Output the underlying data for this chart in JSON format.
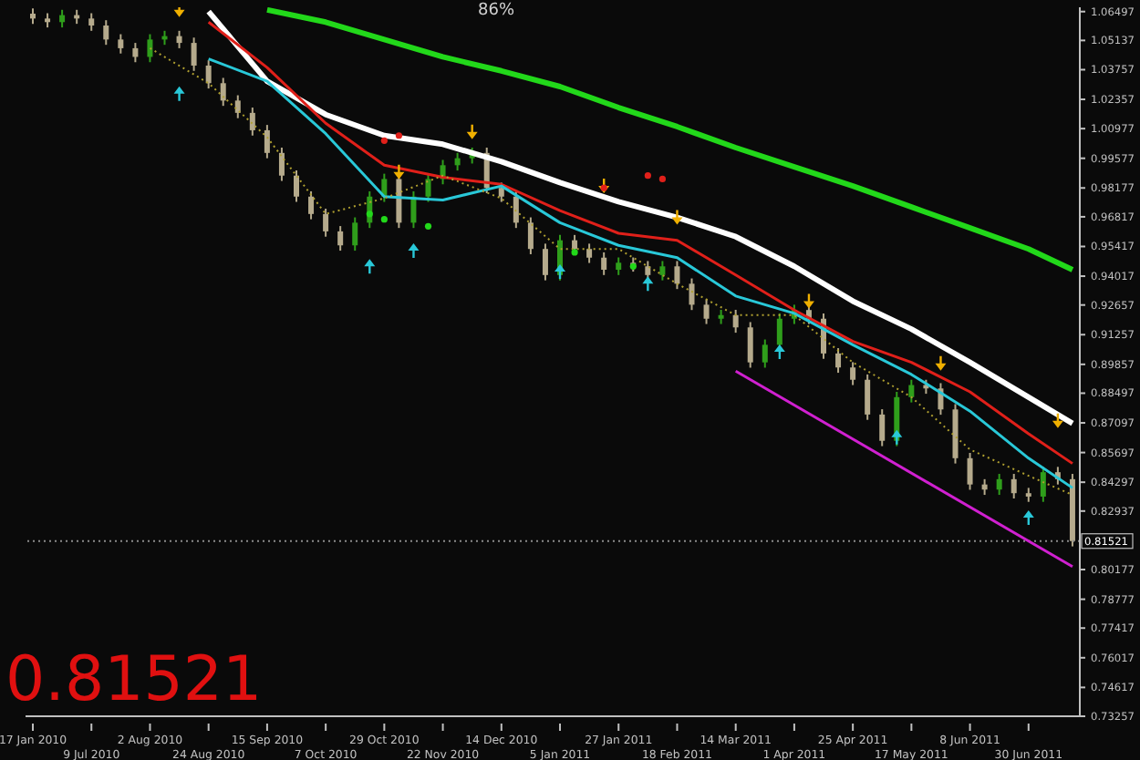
{
  "chart_data": {
    "type": "candlestick",
    "categories": [
      "17 Jan 2010",
      null,
      null,
      null,
      "9 Jul 2010",
      null,
      null,
      null,
      "2 Aug 2010",
      null,
      null,
      null,
      "24 Aug 2010",
      null,
      null,
      null,
      "15 Sep 2010",
      null,
      null,
      null,
      "7 Oct 2010",
      null,
      null,
      null,
      "29 Oct 2010",
      null,
      null,
      null,
      "22 Nov 2010",
      null,
      null,
      null,
      "14 Dec 2010",
      null,
      null,
      null,
      "5 Jan 2011",
      null,
      null,
      null,
      "27 Jan 2011",
      null,
      null,
      null,
      "18 Feb 2011",
      null,
      null,
      null,
      "14 Mar 2011",
      null,
      null,
      null,
      "1 Apr 2011",
      null,
      null,
      null,
      "25 Apr 2011",
      null,
      null,
      null,
      "17 May 2011",
      null,
      null,
      null,
      "8 Jun 2011",
      null,
      null,
      null,
      "30 Jun 2011",
      null,
      null,
      null
    ],
    "ohlc": [
      [
        1.064,
        1.0665,
        1.0592,
        1.0617
      ],
      [
        1.0617,
        1.0642,
        1.0575,
        1.06
      ],
      [
        1.06,
        1.0658,
        1.0575,
        1.0633
      ],
      [
        1.0633,
        1.0658,
        1.0592,
        1.0617
      ],
      [
        1.0617,
        1.0642,
        1.0559,
        1.0584
      ],
      [
        1.0584,
        1.0609,
        1.0493,
        1.0518
      ],
      [
        1.0518,
        1.0543,
        1.0452,
        1.0477
      ],
      [
        1.0477,
        1.0502,
        1.0411,
        1.0436
      ],
      [
        1.0436,
        1.0543,
        1.0411,
        1.0518
      ],
      [
        1.0518,
        1.0559,
        1.0493,
        1.0534
      ],
      [
        1.0534,
        1.0559,
        1.0477,
        1.0502
      ],
      [
        1.0502,
        1.0527,
        1.037,
        1.0395
      ],
      [
        1.0395,
        1.042,
        1.0287,
        1.0312
      ],
      [
        1.0312,
        1.0337,
        1.0205,
        1.023
      ],
      [
        1.023,
        1.0255,
        1.0147,
        1.0172
      ],
      [
        1.0172,
        1.0197,
        1.0065,
        1.009
      ],
      [
        1.009,
        1.0115,
        0.9958,
        0.9983
      ],
      [
        0.9983,
        1.0008,
        0.9851,
        0.9876
      ],
      [
        0.9876,
        0.9901,
        0.9752,
        0.9777
      ],
      [
        0.9777,
        0.9802,
        0.967,
        0.9695
      ],
      [
        0.9695,
        0.972,
        0.9588,
        0.9613
      ],
      [
        0.9613,
        0.9638,
        0.9522,
        0.9547
      ],
      [
        0.9547,
        0.9679,
        0.9522,
        0.9654
      ],
      [
        0.9654,
        0.9802,
        0.9629,
        0.9777
      ],
      [
        0.9777,
        0.9885,
        0.9752,
        0.986
      ],
      [
        0.986,
        0.9885,
        0.9629,
        0.9654
      ],
      [
        0.9654,
        0.9802,
        0.9629,
        0.9777
      ],
      [
        0.9777,
        0.9885,
        0.9752,
        0.986
      ],
      [
        0.986,
        0.995,
        0.9835,
        0.9925
      ],
      [
        0.9925,
        0.9983,
        0.99,
        0.9958
      ],
      [
        0.9958,
        1.0008,
        0.9933,
        0.9983
      ],
      [
        0.9983,
        1.0008,
        0.9793,
        0.9818
      ],
      [
        0.9818,
        0.9843,
        0.9752,
        0.9777
      ],
      [
        0.9777,
        0.9802,
        0.9629,
        0.9654
      ],
      [
        0.9654,
        0.9679,
        0.9505,
        0.953
      ],
      [
        0.953,
        0.9555,
        0.9382,
        0.9407
      ],
      [
        0.9407,
        0.9596,
        0.9382,
        0.9571
      ],
      [
        0.9571,
        0.9596,
        0.9505,
        0.953
      ],
      [
        0.953,
        0.9555,
        0.9464,
        0.9489
      ],
      [
        0.9489,
        0.9514,
        0.9407,
        0.9432
      ],
      [
        0.9432,
        0.949,
        0.9407,
        0.9465
      ],
      [
        0.9465,
        0.949,
        0.9423,
        0.9448
      ],
      [
        0.9448,
        0.9473,
        0.9382,
        0.9407
      ],
      [
        0.9407,
        0.9473,
        0.9382,
        0.9448
      ],
      [
        0.9448,
        0.9473,
        0.9341,
        0.9366
      ],
      [
        0.9366,
        0.9391,
        0.9242,
        0.9267
      ],
      [
        0.9267,
        0.9292,
        0.9176,
        0.9201
      ],
      [
        0.9201,
        0.9243,
        0.9176,
        0.9218
      ],
      [
        0.9218,
        0.9243,
        0.9135,
        0.916
      ],
      [
        0.916,
        0.9185,
        0.897,
        0.8995
      ],
      [
        0.8995,
        0.9103,
        0.897,
        0.9078
      ],
      [
        0.9078,
        0.9226,
        0.9053,
        0.9201
      ],
      [
        0.9201,
        0.9267,
        0.9176,
        0.9242
      ],
      [
        0.9242,
        0.9267,
        0.9176,
        0.9201
      ],
      [
        0.9201,
        0.9226,
        0.9012,
        0.9037
      ],
      [
        0.9037,
        0.9062,
        0.8946,
        0.8971
      ],
      [
        0.8971,
        0.8996,
        0.8888,
        0.8913
      ],
      [
        0.8913,
        0.8938,
        0.8724,
        0.8749
      ],
      [
        0.8749,
        0.8774,
        0.86,
        0.8625
      ],
      [
        0.8625,
        0.8856,
        0.86,
        0.8831
      ],
      [
        0.8831,
        0.8913,
        0.8806,
        0.8888
      ],
      [
        0.8888,
        0.8913,
        0.8847,
        0.8872
      ],
      [
        0.8872,
        0.8897,
        0.8748,
        0.8773
      ],
      [
        0.8773,
        0.8798,
        0.8518,
        0.8543
      ],
      [
        0.8543,
        0.8568,
        0.8394,
        0.8419
      ],
      [
        0.8419,
        0.8444,
        0.837,
        0.8395
      ],
      [
        0.8395,
        0.8469,
        0.837,
        0.8444
      ],
      [
        0.8444,
        0.8469,
        0.8353,
        0.8378
      ],
      [
        0.8378,
        0.8403,
        0.8337,
        0.8362
      ],
      [
        0.8362,
        0.8502,
        0.8337,
        0.8477
      ],
      [
        0.8477,
        0.8502,
        0.8419,
        0.8444
      ],
      [
        0.8444,
        0.8469,
        0.8127,
        0.81521
      ]
    ],
    "colors": [
      "#b5aa8c",
      "#b5aa8c",
      "#2f9e1b",
      "#b5aa8c",
      "#b5aa8c",
      "#b5aa8c",
      "#b5aa8c",
      "#b5aa8c",
      "#2f9e1b",
      "#2f9e1b",
      "#b5aa8c",
      "#b5aa8c",
      "#b5aa8c",
      "#b5aa8c",
      "#b5aa8c",
      "#b5aa8c",
      "#b5aa8c",
      "#b5aa8c",
      "#b5aa8c",
      "#b5aa8c",
      "#b5aa8c",
      "#b5aa8c",
      "#2f9e1b",
      "#2f9e1b",
      "#2f9e1b",
      "#b5aa8c",
      "#2f9e1b",
      "#2f9e1b",
      "#2f9e1b",
      "#2f9e1b",
      "#2f9e1b",
      "#b5aa8c",
      "#b5aa8c",
      "#b5aa8c",
      "#b5aa8c",
      "#b5aa8c",
      "#2f9e1b",
      "#b5aa8c",
      "#b5aa8c",
      "#b5aa8c",
      "#2f9e1b",
      "#b5aa8c",
      "#b5aa8c",
      "#2f9e1b",
      "#b5aa8c",
      "#b5aa8c",
      "#b5aa8c",
      "#2f9e1b",
      "#b5aa8c",
      "#b5aa8c",
      "#2f9e1b",
      "#2f9e1b",
      "#2f9e1b",
      "#b5aa8c",
      "#b5aa8c",
      "#b5aa8c",
      "#b5aa8c",
      "#b5aa8c",
      "#b5aa8c",
      "#2f9e1b",
      "#2f9e1b",
      "#b5aa8c",
      "#b5aa8c",
      "#b5aa8c",
      "#b5aa8c",
      "#b5aa8c",
      "#2f9e1b",
      "#b5aa8c",
      "#b5aa8c",
      "#2f9e1b",
      "#b5aa8c",
      "#b5aa8c"
    ],
    "series": [
      {
        "type": "line",
        "color": "#ffffff",
        "values": [
          null,
          null,
          null,
          null,
          null,
          null,
          null,
          null,
          null,
          null,
          null,
          null,
          1.065,
          null,
          null,
          null,
          1.0321,
          null,
          null,
          null,
          1.0164,
          null,
          null,
          null,
          1.0065,
          null,
          null,
          null,
          1.0024,
          null,
          null,
          null,
          0.9942,
          null,
          null,
          null,
          0.9843,
          null,
          null,
          null,
          0.9753,
          null,
          null,
          null,
          0.9679,
          null,
          null,
          null,
          0.9588,
          null,
          null,
          null,
          0.9448,
          null,
          null,
          null,
          0.9284,
          null,
          null,
          null,
          0.9152,
          null,
          null,
          null,
          0.8995,
          null,
          null,
          null,
          0.8831,
          null,
          null,
          0.8707
        ]
      },
      {
        "type": "line",
        "color": "#e0201a",
        "values": [
          null,
          null,
          null,
          null,
          null,
          null,
          null,
          null,
          null,
          null,
          null,
          null,
          1.06,
          null,
          null,
          null,
          1.0386,
          null,
          null,
          null,
          1.0123,
          null,
          null,
          null,
          0.9925,
          null,
          null,
          null,
          0.9868,
          null,
          null,
          null,
          0.9835,
          null,
          null,
          null,
          0.9711,
          null,
          null,
          null,
          0.9604,
          null,
          null,
          null,
          0.9571,
          null,
          null,
          null,
          0.9407,
          null,
          null,
          null,
          0.9242,
          null,
          null,
          null,
          0.9094,
          null,
          null,
          null,
          0.8995,
          null,
          null,
          null,
          0.8856,
          null,
          null,
          null,
          0.8658,
          null,
          null,
          0.8518
        ]
      },
      {
        "type": "line",
        "color": "#29c8d8",
        "values": [
          null,
          null,
          null,
          null,
          null,
          null,
          null,
          null,
          null,
          null,
          null,
          null,
          1.0427,
          null,
          null,
          null,
          1.0321,
          null,
          null,
          null,
          1.0074,
          null,
          null,
          null,
          0.9777,
          null,
          null,
          null,
          0.9761,
          null,
          null,
          null,
          0.9827,
          null,
          null,
          null,
          0.9654,
          null,
          null,
          null,
          0.9547,
          null,
          null,
          null,
          0.9489,
          null,
          null,
          null,
          0.9308,
          null,
          null,
          null,
          0.9226,
          null,
          null,
          null,
          0.9078,
          null,
          null,
          null,
          0.8938,
          null,
          null,
          null,
          0.8765,
          null,
          null,
          null,
          0.8543,
          null,
          null,
          0.8403
        ]
      },
      {
        "type": "line",
        "color": "#22d81a",
        "values": [
          null,
          null,
          null,
          null,
          null,
          null,
          null,
          null,
          null,
          null,
          null,
          null,
          null,
          null,
          null,
          null,
          1.0658,
          null,
          null,
          null,
          1.06,
          null,
          null,
          null,
          1.0518,
          null,
          null,
          null,
          1.0436,
          null,
          null,
          null,
          1.037,
          null,
          null,
          null,
          1.0296,
          null,
          null,
          null,
          1.0197,
          null,
          null,
          null,
          1.0107,
          null,
          null,
          null,
          1.0008,
          null,
          null,
          null,
          0.9917,
          null,
          null,
          null,
          0.9827,
          null,
          null,
          null,
          0.9728,
          null,
          null,
          null,
          0.9629,
          null,
          null,
          null,
          0.953,
          null,
          null,
          0.9432
        ]
      },
      {
        "type": "line",
        "color": "#b0a030",
        "line_style": "dotted",
        "values": [
          null,
          null,
          null,
          null,
          null,
          null,
          null,
          null,
          1.0477,
          null,
          null,
          null,
          1.0312,
          null,
          null,
          null,
          1.0057,
          null,
          null,
          null,
          0.9695,
          null,
          null,
          null,
          0.9769,
          null,
          null,
          null,
          0.9876,
          null,
          null,
          null,
          0.9769,
          null,
          null,
          null,
          0.953,
          null,
          null,
          null,
          0.953,
          null,
          null,
          null,
          0.9366,
          null,
          null,
          null,
          0.9218,
          null,
          null,
          null,
          0.9218,
          null,
          null,
          null,
          0.8995,
          null,
          null,
          null,
          0.8831,
          null,
          null,
          null,
          0.8584,
          null,
          null,
          null,
          0.846,
          null,
          null,
          0.837
        ]
      },
      {
        "type": "line",
        "color": "#d020d0",
        "values": [
          null,
          null,
          null,
          null,
          null,
          null,
          null,
          null,
          null,
          null,
          null,
          null,
          null,
          null,
          null,
          null,
          null,
          null,
          null,
          null,
          null,
          null,
          null,
          null,
          null,
          null,
          null,
          null,
          null,
          null,
          null,
          null,
          null,
          null,
          null,
          null,
          null,
          null,
          null,
          null,
          null,
          null,
          null,
          null,
          null,
          null,
          null,
          null,
          0.8954,
          null,
          null,
          null,
          null,
          null,
          null,
          null,
          null,
          null,
          null,
          null,
          null,
          null,
          null,
          null,
          null,
          null,
          null,
          null,
          null,
          null,
          null,
          0.8032
        ]
      },
      {
        "type": "scatter",
        "color": "#29c8d8",
        "marker": "triangle",
        "values": [
          null,
          null,
          null,
          null,
          null,
          null,
          null,
          null,
          null,
          null,
          1.0263,
          null,
          null,
          null,
          null,
          null,
          null,
          null,
          null,
          null,
          null,
          null,
          null,
          0.9448,
          null,
          null,
          0.9522,
          null,
          null,
          null,
          null,
          null,
          null,
          null,
          null,
          null,
          0.9423,
          null,
          null,
          null,
          null,
          null,
          0.9366,
          null,
          null,
          null,
          null,
          null,
          null,
          null,
          null,
          0.9045,
          null,
          null,
          null,
          null,
          null,
          null,
          null,
          0.8642,
          null,
          null,
          null,
          null,
          null,
          null,
          null,
          null,
          0.8263,
          null,
          null,
          null
        ]
      },
      {
        "type": "scatter",
        "color": "#f0b000",
        "marker": "triangle",
        "values": [
          null,
          null,
          null,
          null,
          null,
          null,
          null,
          null,
          null,
          null,
          1.0658,
          null,
          null,
          null,
          null,
          null,
          null,
          null,
          null,
          null,
          null,
          null,
          null,
          null,
          null,
          0.9893,
          null,
          null,
          null,
          null,
          1.0082,
          null,
          null,
          null,
          null,
          null,
          null,
          null,
          null,
          0.9827,
          null,
          null,
          null,
          null,
          0.9679,
          null,
          null,
          null,
          null,
          null,
          null,
          null,
          null,
          0.9284,
          null,
          null,
          null,
          null,
          null,
          null,
          null,
          null,
          0.899,
          null,
          null,
          null,
          null,
          null,
          null,
          null,
          0.872,
          null
        ]
      },
      {
        "type": "scatter",
        "color": "#e0201a",
        "marker": "circle",
        "values": [
          null,
          null,
          null,
          null,
          null,
          null,
          null,
          null,
          null,
          null,
          null,
          null,
          null,
          null,
          null,
          null,
          null,
          null,
          null,
          null,
          null,
          null,
          null,
          null,
          1.0041,
          1.0065,
          null,
          null,
          null,
          null,
          null,
          null,
          null,
          null,
          null,
          null,
          null,
          null,
          null,
          0.9818,
          null,
          null,
          0.9876,
          0.986,
          null,
          null,
          null,
          null,
          null,
          null,
          null,
          null,
          null,
          null,
          null,
          null,
          null,
          null,
          null,
          null,
          null,
          null,
          null,
          null,
          null,
          null,
          null,
          null,
          null,
          null,
          null,
          null
        ]
      },
      {
        "type": "scatter",
        "color": "#22d81a",
        "marker": "circle",
        "values": [
          null,
          null,
          null,
          null,
          null,
          null,
          null,
          null,
          null,
          null,
          null,
          null,
          null,
          null,
          null,
          null,
          null,
          null,
          null,
          null,
          null,
          null,
          null,
          0.9695,
          0.967,
          null,
          null,
          0.9637,
          null,
          null,
          null,
          null,
          null,
          null,
          null,
          null,
          null,
          0.9514,
          null,
          null,
          null,
          0.9448,
          null,
          null,
          null,
          null,
          null,
          null,
          null,
          null,
          null,
          null,
          null,
          null,
          null,
          null,
          null,
          null,
          null,
          null,
          null,
          null,
          null,
          null,
          null,
          null,
          null,
          null,
          null,
          null,
          null,
          null
        ]
      }
    ],
    "ylim": [
      0.73257,
      1.067
    ],
    "yticks": [
      1.06497,
      1.05137,
      1.03757,
      1.02357,
      1.00977,
      0.99577,
      0.98177,
      0.96817,
      0.95417,
      0.94017,
      0.92657,
      0.91257,
      0.89857,
      0.88497,
      0.87097,
      0.85697,
      0.84297,
      0.82937,
      0.80177,
      0.78777,
      0.77417,
      0.76017,
      0.74617,
      0.73257
    ],
    "ref_lines": [
      {
        "axis": "y",
        "value": 0.81521,
        "label": "0.81521",
        "color": "#8c8c8c",
        "line_style": "dotted"
      }
    ],
    "annotations": [
      "86%",
      "0.81521"
    ]
  }
}
